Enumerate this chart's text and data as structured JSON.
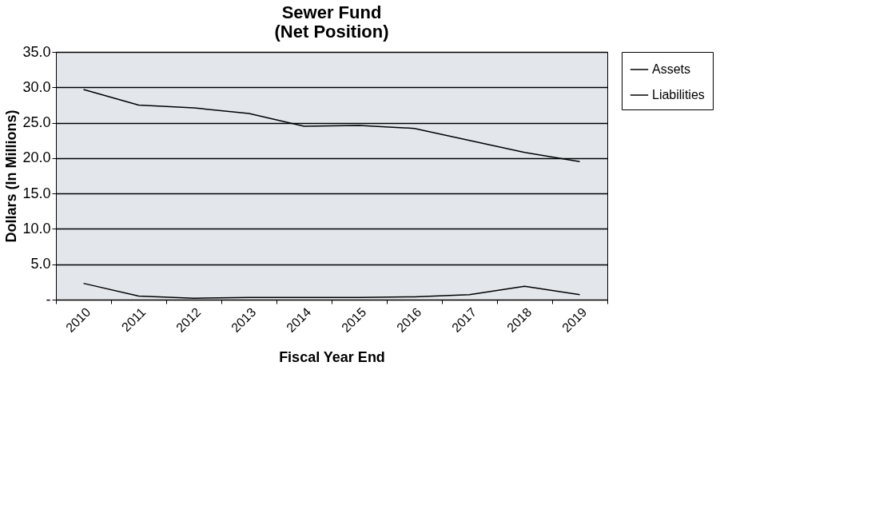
{
  "chart_data": {
    "type": "line",
    "title": "Sewer Fund\n(Net Position)",
    "xlabel": "Fiscal Year End",
    "ylabel": "Dollars (In Millions)",
    "categories": [
      "2010",
      "2011",
      "2012",
      "2013",
      "2014",
      "2015",
      "2016",
      "2017",
      "2018",
      "2019"
    ],
    "series": [
      {
        "name": "Assets",
        "color": "#000000",
        "values": [
          29.7,
          27.5,
          27.1,
          26.3,
          24.5,
          24.6,
          24.2,
          22.5,
          20.8,
          19.5
        ]
      },
      {
        "name": "Liabilities",
        "color": "#000000",
        "values": [
          2.3,
          0.5,
          0.2,
          0.3,
          0.3,
          0.3,
          0.4,
          0.7,
          1.9,
          0.7
        ]
      }
    ],
    "ylim": [
      0,
      35
    ],
    "yticks": [
      {
        "value": 0,
        "label": "-"
      },
      {
        "value": 5,
        "label": "5.0"
      },
      {
        "value": 10,
        "label": "10.0"
      },
      {
        "value": 15,
        "label": "15.0"
      },
      {
        "value": 20,
        "label": "20.0"
      },
      {
        "value": 25,
        "label": "25.0"
      },
      {
        "value": 30,
        "label": "30.0"
      },
      {
        "value": 35,
        "label": "35.0"
      }
    ],
    "grid": "y",
    "legend": "right",
    "marker": "none",
    "line_style": "solid"
  }
}
